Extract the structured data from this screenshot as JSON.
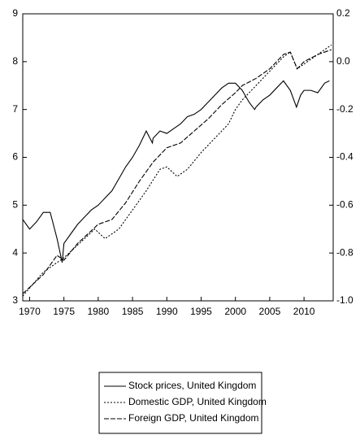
{
  "chart_data": {
    "type": "line",
    "xlim": [
      1969,
      2014.25
    ],
    "xticks": [
      1970,
      1975,
      1980,
      1985,
      1990,
      1995,
      2000,
      2005,
      2010
    ],
    "ylim": [
      3,
      9
    ],
    "yticks": [
      3,
      4,
      5,
      6,
      7,
      8,
      9
    ],
    "y2lim": [
      -1.0,
      0.2
    ],
    "y2ticks": [
      {
        "value": -1.0,
        "label": "-1.0"
      },
      -0.8,
      -0.6,
      -0.4,
      -0.2,
      {
        "value": 0.0,
        "label": "0.0"
      },
      0.2
    ],
    "legend": "bottom",
    "series": [
      {
        "name": "Stock prices, United Kingdom",
        "color": "#000000",
        "dash": "none",
        "axis": "y",
        "x": [
          1969,
          1970,
          1971,
          1972,
          1973,
          1974,
          1974.75,
          1975,
          1976,
          1977,
          1978,
          1979,
          1980,
          1981,
          1982,
          1983,
          1984,
          1985,
          1986,
          1987,
          1987.9,
          1988,
          1989,
          1990,
          1991,
          1992,
          1993,
          1994,
          1995,
          1996,
          1997,
          1998,
          1999,
          2000,
          2001,
          2002,
          2002.8,
          2003,
          2004,
          2005,
          2006,
          2007,
          2008,
          2008.9,
          2009.5,
          2010,
          2011,
          2012,
          2013,
          2013.7
        ],
        "values": [
          4.7,
          4.5,
          4.65,
          4.85,
          4.85,
          4.3,
          3.8,
          4.2,
          4.4,
          4.6,
          4.75,
          4.9,
          5.0,
          5.15,
          5.3,
          5.55,
          5.8,
          6.0,
          6.25,
          6.55,
          6.3,
          6.4,
          6.55,
          6.5,
          6.6,
          6.7,
          6.85,
          6.9,
          7.0,
          7.15,
          7.3,
          7.45,
          7.55,
          7.55,
          7.4,
          7.15,
          7.0,
          7.05,
          7.2,
          7.3,
          7.45,
          7.6,
          7.4,
          7.05,
          7.3,
          7.4,
          7.4,
          7.35,
          7.55,
          7.6
        ]
      },
      {
        "name": "Domestic GDP, United Kingdom",
        "color": "#000000",
        "dash": "2,2",
        "axis": "y2",
        "x": [
          1969,
          1972,
          1975,
          1978,
          1979.5,
          1981,
          1983,
          1985,
          1987,
          1989,
          1990,
          1991.5,
          1993,
          1995,
          1997,
          1999,
          2000,
          2001,
          2003,
          2005,
          2007,
          2008,
          2009,
          2010,
          2012,
          2014
        ],
        "values": [
          -0.98,
          -0.88,
          -0.82,
          -0.74,
          -0.7,
          -0.74,
          -0.7,
          -0.62,
          -0.54,
          -0.45,
          -0.44,
          -0.48,
          -0.45,
          -0.38,
          -0.32,
          -0.26,
          -0.2,
          -0.16,
          -0.1,
          -0.04,
          0.02,
          0.04,
          -0.03,
          -0.01,
          0.03,
          0.07
        ]
      },
      {
        "name": "Foreign GDP, United Kingdom",
        "color": "#000000",
        "dash": "6,2",
        "axis": "y2",
        "x": [
          1969,
          1972,
          1974,
          1975,
          1977,
          1980,
          1982,
          1984,
          1986,
          1988,
          1990,
          1992,
          1994,
          1996,
          1998,
          2000,
          2001,
          2003,
          2005,
          2007,
          2008,
          2009,
          2010,
          2012,
          2014
        ],
        "values": [
          -0.97,
          -0.89,
          -0.81,
          -0.83,
          -0.76,
          -0.68,
          -0.66,
          -0.59,
          -0.5,
          -0.42,
          -0.36,
          -0.34,
          -0.29,
          -0.24,
          -0.18,
          -0.13,
          -0.1,
          -0.07,
          -0.03,
          0.03,
          0.04,
          -0.03,
          0.0,
          0.03,
          0.05
        ]
      }
    ]
  }
}
